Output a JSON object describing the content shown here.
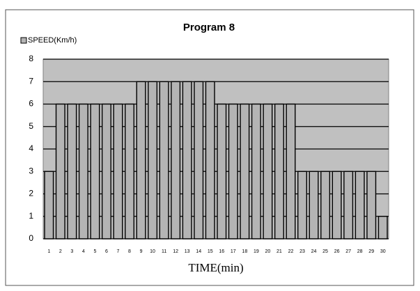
{
  "chart_data": {
    "type": "bar",
    "title": "Program 8",
    "x_label": "TIME(min)",
    "categories": [
      "1",
      "2",
      "3",
      "4",
      "5",
      "6",
      "7",
      "8",
      "9",
      "10",
      "11",
      "12",
      "13",
      "14",
      "15",
      "16",
      "17",
      "18",
      "19",
      "20",
      "21",
      "22",
      "23",
      "24",
      "25",
      "26",
      "27",
      "28",
      "29",
      "30"
    ],
    "series": [
      {
        "name": "SPEED(Km/h)",
        "color": "#b4b4b4",
        "values": [
          3,
          6,
          6,
          6,
          6,
          6,
          6,
          6,
          7,
          7,
          7,
          7,
          7,
          7,
          7,
          6,
          6,
          6,
          6,
          6,
          6,
          6,
          3,
          3,
          3,
          3,
          3,
          3,
          3,
          1
        ]
      }
    ],
    "ylim": [
      0,
      8
    ],
    "yticks": [
      0,
      1,
      2,
      3,
      4,
      5,
      6,
      7,
      8
    ],
    "grid": true,
    "legend": "top-left"
  }
}
